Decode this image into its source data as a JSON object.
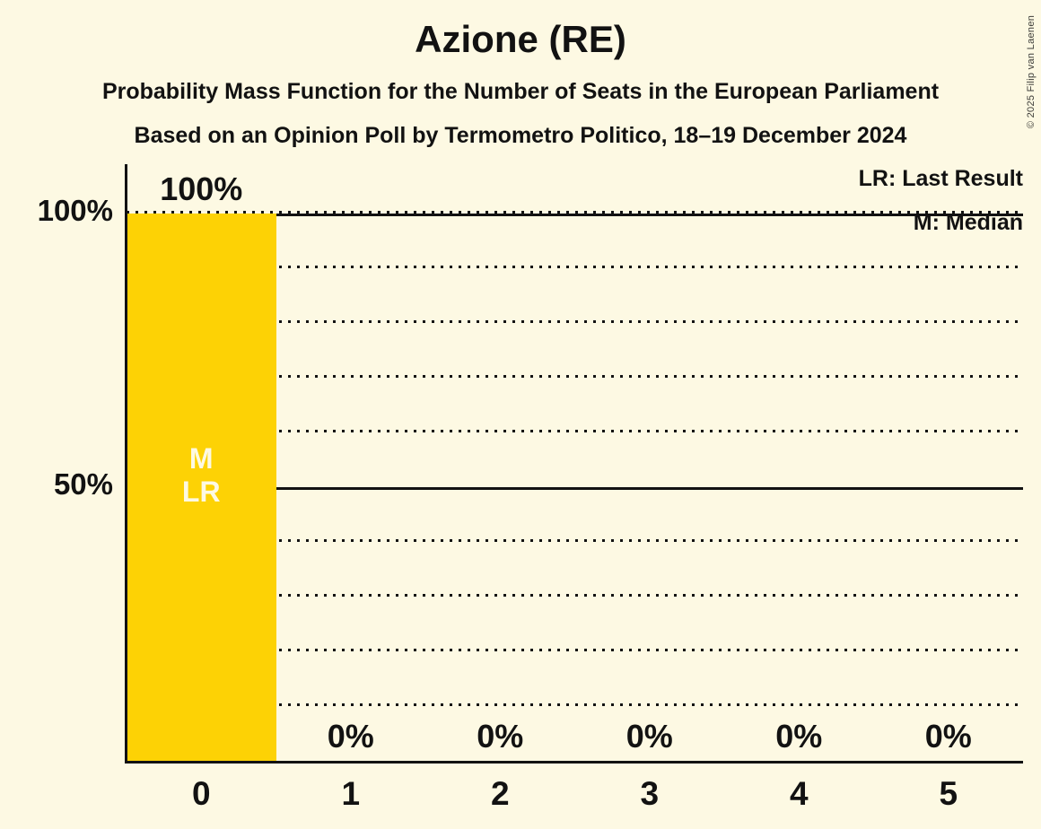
{
  "title": "Azione (RE)",
  "subtitles": {
    "line1": "Probability Mass Function for the Number of Seats in the European Parliament",
    "line2": "Based on an Opinion Poll by Termometro Politico, 18–19 December 2024"
  },
  "legend": {
    "last_result": "LR: Last Result",
    "median": "M: Median"
  },
  "copyright": "© 2025 Filip van Laenen",
  "colors": {
    "background": "#FDF9E3",
    "ink": "#121212",
    "bar": "#FDD205",
    "bar_annotation_text": "#FDF9E3",
    "copyright_text": "#3C3C38"
  },
  "chart_data": {
    "type": "bar",
    "title": "Azione (RE)",
    "categories": [
      "0",
      "1",
      "2",
      "3",
      "4",
      "5"
    ],
    "values": [
      100,
      0,
      0,
      0,
      0,
      0
    ],
    "value_labels": [
      "100%",
      "0%",
      "0%",
      "0%",
      "0%",
      "0%"
    ],
    "xlabel": "",
    "ylabel": "",
    "ylim": [
      0,
      100
    ],
    "yticks": [
      {
        "value": 100,
        "label": "100%"
      },
      {
        "value": 50,
        "label": "50%"
      }
    ],
    "solid_gridlines": [
      100,
      50
    ],
    "dotted_gridlines": [
      100,
      90,
      80,
      70,
      60,
      40,
      30,
      20,
      10
    ],
    "grid": true,
    "legend_position": "top-right",
    "median_bar": "0",
    "last_result_bar": "0",
    "annotated_bar_index": 0,
    "bar_annotations": [
      "M",
      "LR"
    ]
  }
}
